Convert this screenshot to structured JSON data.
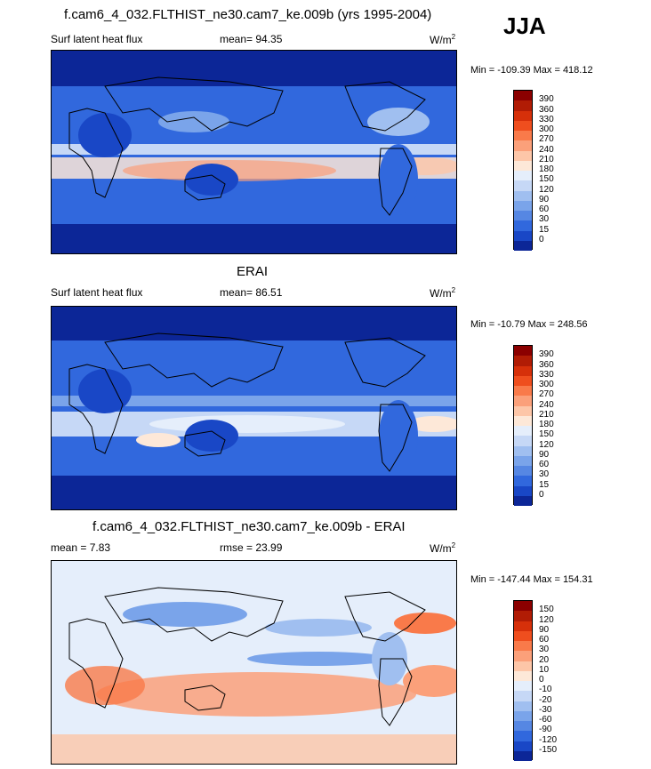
{
  "season": "JJA",
  "panels": [
    {
      "title": "f.cam6_4_032.FLTHIST_ne30.cam7_ke.009b (yrs 1995-2004)",
      "left_label": "Surf latent heat flux",
      "center_label": "mean=  94.35",
      "units": "W/m",
      "units_sup": "2",
      "minmax": "Min = -109.39 Max = 418.12",
      "colorbar": {
        "ticks": [
          "390",
          "360",
          "330",
          "300",
          "270",
          "240",
          "210",
          "180",
          "150",
          "120",
          "90",
          "60",
          "30",
          "15",
          "0"
        ],
        "colors": [
          "#8b0000",
          "#b11c05",
          "#d6300a",
          "#ef4e1e",
          "#f97a4a",
          "#fba07a",
          "#fdc6a8",
          "#fde8d8",
          "#e5eefb",
          "#c6d8f6",
          "#a0bff0",
          "#7aa4ea",
          "#5687e3",
          "#3168dd",
          "#1947c6",
          "#0c2697"
        ]
      }
    },
    {
      "title": "ERAI",
      "left_label": "Surf latent heat flux",
      "center_label": "mean=  86.51",
      "units": "W/m",
      "units_sup": "2",
      "minmax": "Min = -10.79 Max = 248.56",
      "colorbar": {
        "ticks": [
          "390",
          "360",
          "330",
          "300",
          "270",
          "240",
          "210",
          "180",
          "150",
          "120",
          "90",
          "60",
          "30",
          "15",
          "0"
        ],
        "colors": [
          "#8b0000",
          "#b11c05",
          "#d6300a",
          "#ef4e1e",
          "#f97a4a",
          "#fba07a",
          "#fdc6a8",
          "#fde8d8",
          "#e5eefb",
          "#c6d8f6",
          "#a0bff0",
          "#7aa4ea",
          "#5687e3",
          "#3168dd",
          "#1947c6",
          "#0c2697"
        ]
      }
    },
    {
      "title": "f.cam6_4_032.FLTHIST_ne30.cam7_ke.009b - ERAI",
      "left_label": "mean =   7.83",
      "center_label": "rmse =  23.99",
      "units": "W/m",
      "units_sup": "2",
      "minmax": "Min = -147.44 Max = 154.31",
      "colorbar": {
        "ticks": [
          "150",
          "120",
          "90",
          "60",
          "30",
          "20",
          "10",
          "0",
          "-10",
          "-20",
          "-30",
          "-60",
          "-90",
          "-120",
          "-150"
        ],
        "colors": [
          "#8b0000",
          "#b11c05",
          "#d6300a",
          "#ef4e1e",
          "#f97a4a",
          "#fba07a",
          "#fdc6a8",
          "#fde8d8",
          "#e5eefb",
          "#c6d8f6",
          "#a0bff0",
          "#7aa4ea",
          "#5687e3",
          "#3168dd",
          "#1947c6",
          "#0c2697"
        ]
      }
    }
  ],
  "map_colors": {
    "deep": "#0c2697",
    "mid": "#3168dd",
    "light": "#7aa4ea",
    "pale": "#c6d8f6",
    "warm": "#fde8d8",
    "orange": "#f97a4a",
    "diff_bg": "#e5eefb",
    "diff_warm": "#f97a4a",
    "diff_pale": "#fdc6a8",
    "diff_blue": "#7aa4ea"
  }
}
